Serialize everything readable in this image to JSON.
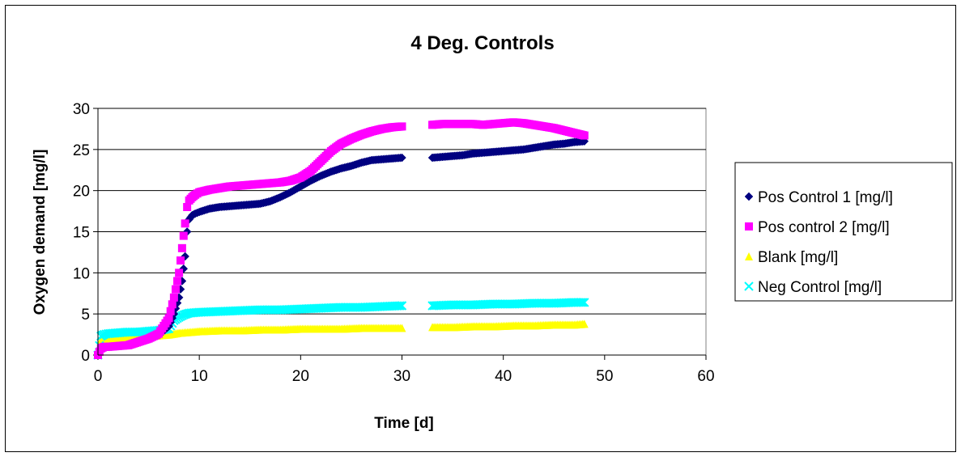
{
  "chart_data": {
    "type": "scatter",
    "title": "4 Deg. Controls",
    "xlabel": "Time [d]",
    "ylabel": "Oxygen demand [mg/l]",
    "xlim": [
      0,
      60
    ],
    "ylim": [
      0,
      30
    ],
    "xticks": [
      "0",
      "10",
      "20",
      "30",
      "40",
      "50",
      "60"
    ],
    "yticks": [
      "0",
      "5",
      "10",
      "15",
      "20",
      "25",
      "30"
    ],
    "grid": "horizontal major gridlines",
    "legend_position": "right",
    "series": [
      {
        "name": "Pos Control 1 [mg/l]",
        "marker": "diamond",
        "color": "#000080",
        "x": [
          0,
          0.3,
          0.6,
          1,
          2,
          3,
          4,
          5,
          6,
          7,
          7.5,
          8,
          8.3,
          8.6,
          8.8,
          9,
          9.3,
          9.6,
          10,
          11,
          12,
          13,
          14,
          15,
          16,
          17,
          18,
          19,
          20,
          21,
          22,
          23,
          24,
          25,
          26,
          27,
          28,
          29,
          30,
          33,
          34,
          35,
          36,
          37,
          38,
          39,
          40,
          41,
          42,
          43,
          44,
          45,
          46,
          47,
          48
        ],
        "y": [
          0,
          0.8,
          1.0,
          1.0,
          1.1,
          1.2,
          1.5,
          1.9,
          2.4,
          3.5,
          5.0,
          7.0,
          9.0,
          12.0,
          15.0,
          16.5,
          17.0,
          17.2,
          17.4,
          17.8,
          18.0,
          18.1,
          18.2,
          18.3,
          18.4,
          18.7,
          19.2,
          19.8,
          20.5,
          21.2,
          21.8,
          22.3,
          22.7,
          23.0,
          23.4,
          23.7,
          23.8,
          23.9,
          24.0,
          24.0,
          24.1,
          24.2,
          24.3,
          24.5,
          24.6,
          24.7,
          24.8,
          24.9,
          25.0,
          25.2,
          25.4,
          25.6,
          25.7,
          25.9,
          26.0
        ]
      },
      {
        "name": "Pos control 2 [mg/l]",
        "marker": "square",
        "color": "#FF00FF",
        "x": [
          0,
          0.3,
          0.6,
          1,
          2,
          3,
          4,
          5,
          6,
          7,
          7.5,
          8,
          8.3,
          8.6,
          8.8,
          9,
          9.3,
          9.6,
          10,
          11,
          12,
          13,
          14,
          15,
          16,
          17,
          18,
          19,
          20,
          21,
          22,
          23,
          24,
          25,
          26,
          27,
          28,
          29,
          30,
          33,
          34,
          35,
          36,
          37,
          38,
          39,
          40,
          41,
          42,
          43,
          44,
          45,
          46,
          47,
          48
        ],
        "y": [
          0,
          0.8,
          1.0,
          1.0,
          1.1,
          1.2,
          1.6,
          2.0,
          2.6,
          4.5,
          7.0,
          10.0,
          13.0,
          16.0,
          18.0,
          18.8,
          19.2,
          19.5,
          19.8,
          20.1,
          20.3,
          20.5,
          20.6,
          20.7,
          20.8,
          20.9,
          21.0,
          21.2,
          21.6,
          22.4,
          23.6,
          24.8,
          25.7,
          26.3,
          26.8,
          27.2,
          27.5,
          27.7,
          27.8,
          28.0,
          28.1,
          28.1,
          28.1,
          28.1,
          28.0,
          28.1,
          28.2,
          28.3,
          28.2,
          28.0,
          27.8,
          27.6,
          27.3,
          27.0,
          26.7
        ]
      },
      {
        "name": "Blank [mg/l]",
        "marker": "triangle",
        "color": "#FFFF00",
        "x": [
          0,
          0.3,
          0.6,
          1,
          2,
          3,
          4,
          5,
          6,
          7,
          8,
          9,
          10,
          12,
          14,
          16,
          18,
          20,
          22,
          24,
          26,
          28,
          30,
          33,
          35,
          37,
          39,
          41,
          43,
          45,
          47,
          48
        ],
        "y": [
          0,
          1.8,
          2.0,
          2.0,
          2.1,
          2.2,
          2.2,
          2.3,
          2.4,
          2.5,
          2.7,
          2.8,
          2.9,
          3.0,
          3.0,
          3.1,
          3.1,
          3.2,
          3.2,
          3.2,
          3.3,
          3.3,
          3.3,
          3.4,
          3.4,
          3.5,
          3.5,
          3.6,
          3.6,
          3.7,
          3.7,
          3.8
        ]
      },
      {
        "name": "Neg Control [mg/l]",
        "marker": "x",
        "color": "#00FFFF",
        "x": [
          0,
          0.3,
          0.6,
          1,
          2,
          3,
          4,
          5,
          6,
          7,
          7.5,
          8,
          8.5,
          9,
          10,
          12,
          14,
          16,
          18,
          20,
          22,
          24,
          26,
          28,
          30,
          33,
          35,
          37,
          39,
          41,
          43,
          45,
          47,
          48
        ],
        "y": [
          0,
          2.3,
          2.5,
          2.6,
          2.7,
          2.8,
          2.8,
          2.9,
          3.0,
          3.2,
          4.2,
          4.6,
          4.9,
          5.1,
          5.2,
          5.3,
          5.4,
          5.5,
          5.5,
          5.6,
          5.7,
          5.8,
          5.8,
          5.9,
          6.0,
          6.0,
          6.1,
          6.1,
          6.2,
          6.2,
          6.3,
          6.3,
          6.4,
          6.4
        ]
      }
    ]
  }
}
